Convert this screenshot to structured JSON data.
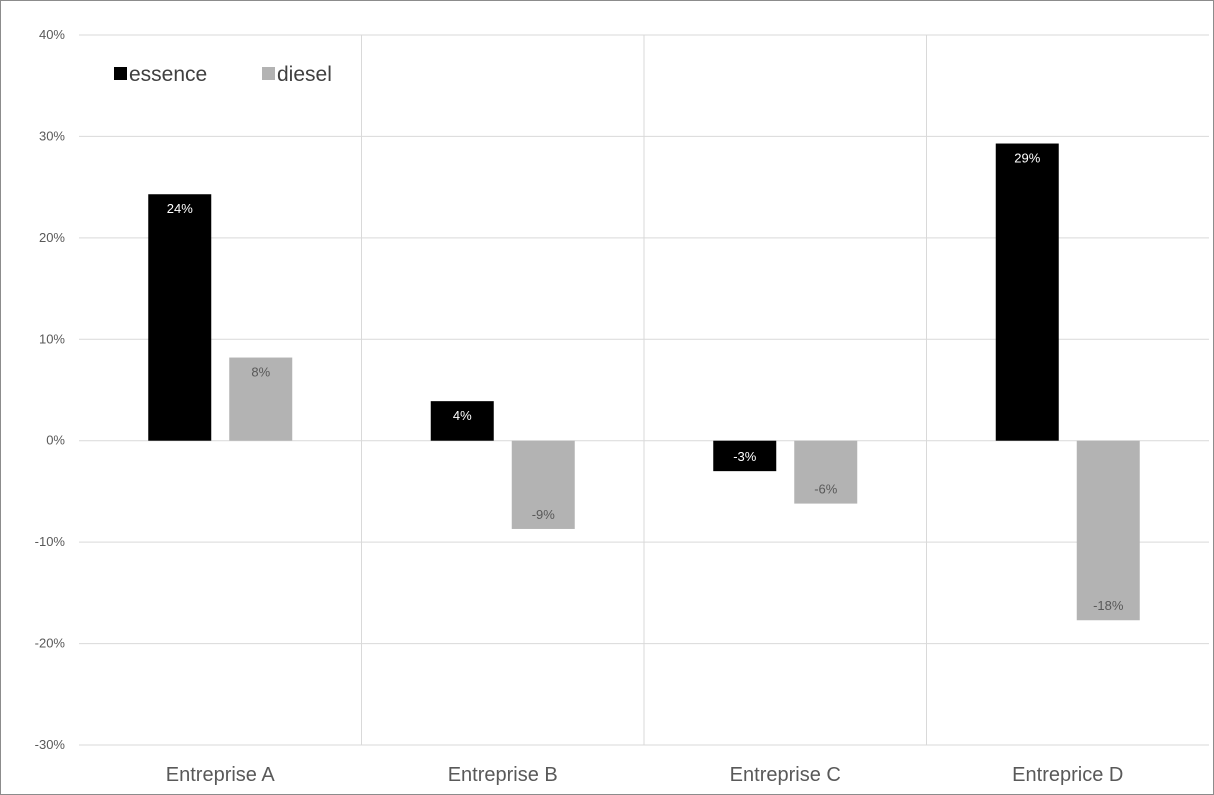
{
  "chart_data": {
    "type": "bar",
    "categories": [
      "Entreprise A",
      "Entreprise B",
      "Entreprise C",
      "Entreprice D"
    ],
    "series": [
      {
        "name": "essence",
        "color": "#000000",
        "label_color": "#ffffff",
        "values": [
          0.243,
          0.039,
          -0.03,
          0.293
        ],
        "labels": [
          "24%",
          "4%",
          "-3%",
          "29%"
        ]
      },
      {
        "name": "diesel",
        "color": "#b3b3b3",
        "label_color": "#595959",
        "values": [
          0.082,
          -0.087,
          -0.062,
          -0.177
        ],
        "labels": [
          "8%",
          "-9%",
          "-6%",
          "-18%"
        ]
      }
    ],
    "ylim": [
      -0.3,
      0.4
    ],
    "yticks": [
      {
        "value": 0.4,
        "label": "40%"
      },
      {
        "value": 0.3,
        "label": "30%"
      },
      {
        "value": 0.2,
        "label": "20%"
      },
      {
        "value": 0.1,
        "label": "10%"
      },
      {
        "value": 0.0,
        "label": "0%"
      },
      {
        "value": -0.1,
        "label": "-10%"
      },
      {
        "value": -0.2,
        "label": "-20%"
      },
      {
        "value": -0.3,
        "label": "-30%"
      }
    ],
    "grid": true,
    "legend_position": "top-left",
    "title": "",
    "xlabel": "",
    "ylabel": ""
  }
}
